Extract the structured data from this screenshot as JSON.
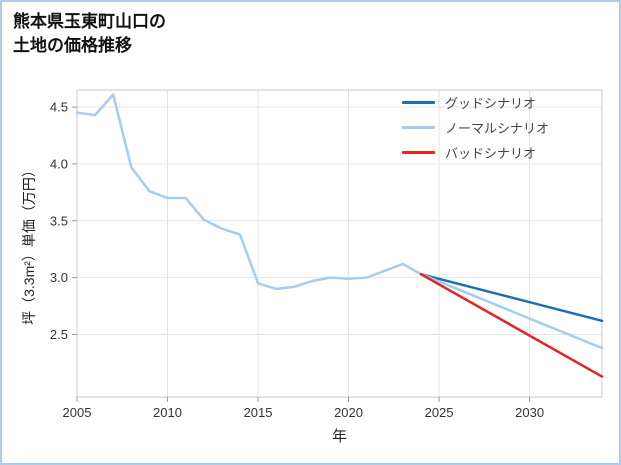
{
  "header": {
    "title_line1": "熊本県玉東町山口の",
    "title_line2": "土地の価格推移"
  },
  "chart_data": {
    "type": "line",
    "title": "熊本県玉東町山口の土地の価格推移",
    "xlabel": "年",
    "ylabel": "坪（3.3m²）単価（万円）",
    "xlim": [
      2005,
      2034
    ],
    "ylim": [
      1.95,
      4.65
    ],
    "x_ticks": [
      2005,
      2010,
      2015,
      2020,
      2025,
      2030
    ],
    "y_ticks": [
      2.5,
      3.0,
      3.5,
      4.0,
      4.5
    ],
    "grid": true,
    "legend_position": "top-right",
    "history": {
      "color": "#a5cdf0",
      "x": [
        2005,
        2006,
        2007,
        2008,
        2009,
        2010,
        2011,
        2012,
        2013,
        2014,
        2015,
        2016,
        2017,
        2018,
        2019,
        2020,
        2021,
        2022,
        2023,
        2024
      ],
      "values": [
        4.45,
        4.43,
        4.61,
        3.97,
        3.76,
        3.7,
        3.7,
        3.51,
        3.43,
        3.38,
        2.95,
        2.9,
        2.92,
        2.97,
        3.0,
        2.99,
        3.0,
        3.06,
        3.12,
        3.03
      ]
    },
    "series": [
      {
        "name": "グッドシナリオ",
        "color": "#1b6db5",
        "x": [
          2024,
          2034
        ],
        "values": [
          3.03,
          2.62
        ]
      },
      {
        "name": "ノーマルシナリオ",
        "color": "#a5cdf0",
        "x": [
          2024,
          2034
        ],
        "values": [
          3.03,
          2.38
        ]
      },
      {
        "name": "バッドシナリオ",
        "color": "#e62222",
        "x": [
          2024,
          2034
        ],
        "values": [
          3.03,
          2.13
        ]
      }
    ],
    "page_border_color": "#aecde8"
  }
}
